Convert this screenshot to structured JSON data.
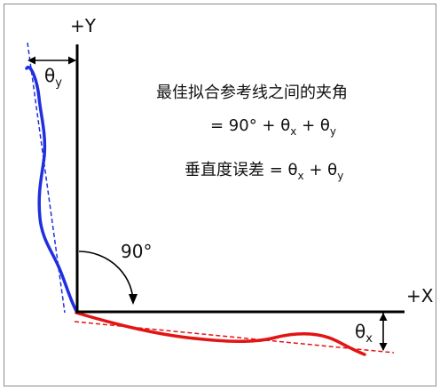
{
  "axes": {
    "y_label": "+Y",
    "x_label": "+X"
  },
  "angles": {
    "right_angle": "90°",
    "theta_y": {
      "symbol": "θ",
      "subscript": "y"
    },
    "theta_x": {
      "symbol": "θ",
      "subscript": "x"
    }
  },
  "annotation": {
    "line1": "最佳拟合参考线之间的夹角",
    "line2_prefix": "= 90° + θ",
    "line2_sub1": "x",
    "line2_mid": " + θ",
    "line2_sub2": "y",
    "line3_prefix": "垂直度误差 = θ",
    "line3_sub1": "x",
    "line3_mid": " + θ",
    "line3_sub2": "y"
  },
  "colors": {
    "blue": "#1f2fe0",
    "red": "#e31414",
    "axis": "#000000",
    "frame": "#888888"
  }
}
